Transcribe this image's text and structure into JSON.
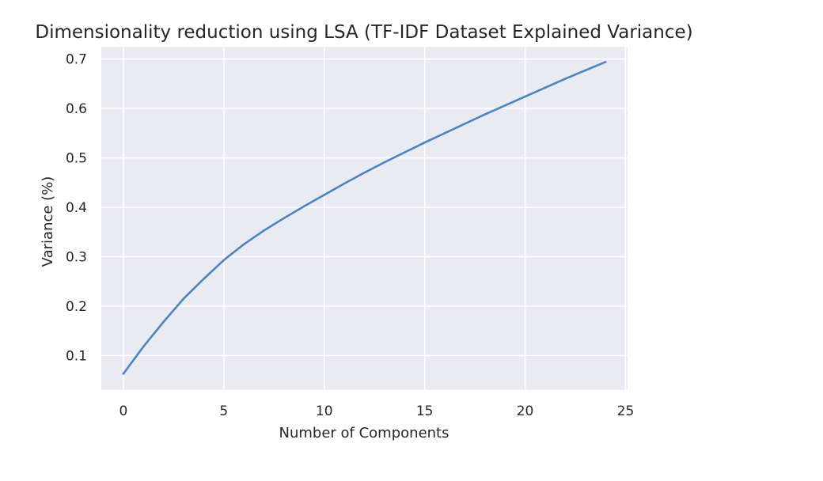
{
  "chart_data": {
    "type": "line",
    "title": "Dimensionality reduction using LSA (TF-IDF Dataset Explained Variance)",
    "xlabel": "Number of Components",
    "ylabel": "Variance (%)",
    "xlim": [
      -1.1,
      25.1
    ],
    "ylim": [
      0.03,
      0.725
    ],
    "xticks": [
      0,
      5,
      10,
      15,
      20,
      25
    ],
    "yticks": [
      0.1,
      0.2,
      0.3,
      0.4,
      0.5,
      0.6,
      0.7
    ],
    "xtick_labels": [
      "0",
      "5",
      "10",
      "15",
      "20",
      "25"
    ],
    "ytick_labels": [
      "0.1",
      "0.2",
      "0.3",
      "0.4",
      "0.5",
      "0.6",
      "0.7"
    ],
    "grid": true,
    "background": "#eaeaf2",
    "grid_color": "#ffffff",
    "series": [
      {
        "color": "#4c84bf",
        "x": [
          0,
          1,
          2,
          3,
          4,
          5,
          6,
          7,
          8,
          9,
          10,
          11,
          12,
          13,
          14,
          15,
          16,
          17,
          18,
          19,
          20,
          21,
          22,
          23,
          24
        ],
        "y": [
          0.063,
          0.118,
          0.168,
          0.215,
          0.255,
          0.293,
          0.325,
          0.353,
          0.378,
          0.402,
          0.425,
          0.448,
          0.47,
          0.491,
          0.511,
          0.531,
          0.55,
          0.569,
          0.588,
          0.606,
          0.624,
          0.642,
          0.66,
          0.677,
          0.694
        ]
      }
    ]
  }
}
